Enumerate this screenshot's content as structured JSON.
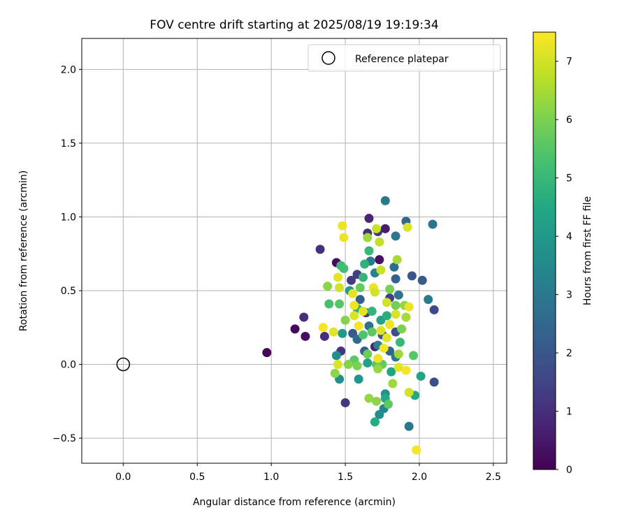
{
  "chart_data": {
    "type": "scatter",
    "title": "FOV centre drift starting at 2025/08/19 19:19:34",
    "xlabel": "Angular distance from reference (arcmin)",
    "ylabel": "Rotation from reference (arcmin)",
    "xlim": [
      -0.28,
      2.59
    ],
    "ylim": [
      -0.67,
      2.21
    ],
    "x_ticks": [
      0.0,
      0.5,
      1.0,
      1.5,
      2.0,
      2.5
    ],
    "x_tick_labels": [
      "0.0",
      "0.5",
      "1.0",
      "1.5",
      "2.0",
      "2.5"
    ],
    "y_ticks": [
      -0.5,
      0.0,
      0.5,
      1.0,
      1.5,
      2.0
    ],
    "y_tick_labels": [
      "−0.5",
      "0.0",
      "0.5",
      "1.0",
      "1.5",
      "2.0"
    ],
    "grid": true,
    "legend": {
      "placement": "top-right",
      "label": "Reference platepar"
    },
    "reference_point": {
      "x": 0.0,
      "y": 0.0
    },
    "colorbar": {
      "label": "Hours from first FF file",
      "range": [
        0,
        7.5
      ],
      "ticks": [
        0,
        1,
        2,
        3,
        4,
        5,
        6,
        7
      ],
      "tick_labels": [
        "0",
        "1",
        "2",
        "3",
        "4",
        "5",
        "6",
        "7"
      ],
      "colormap": "viridis"
    },
    "points": [
      {
        "x": 0.97,
        "y": 0.08,
        "h": 0.1
      },
      {
        "x": 1.16,
        "y": 0.24,
        "h": 0.2
      },
      {
        "x": 1.23,
        "y": 0.19,
        "h": 0.3
      },
      {
        "x": 1.22,
        "y": 0.32,
        "h": 1.0
      },
      {
        "x": 1.33,
        "y": 0.78,
        "h": 1.0
      },
      {
        "x": 1.36,
        "y": 0.19,
        "h": 1.0
      },
      {
        "x": 1.44,
        "y": 0.69,
        "h": 0.2
      },
      {
        "x": 1.47,
        "y": 0.09,
        "h": 1.2
      },
      {
        "x": 1.5,
        "y": -0.26,
        "h": 1.2
      },
      {
        "x": 1.54,
        "y": 0.57,
        "h": 1.3
      },
      {
        "x": 1.58,
        "y": 0.61,
        "h": 1.4
      },
      {
        "x": 1.65,
        "y": 0.89,
        "h": 1.0
      },
      {
        "x": 1.66,
        "y": 0.99,
        "h": 0.8
      },
      {
        "x": 1.72,
        "y": 0.9,
        "h": 1.3
      },
      {
        "x": 1.77,
        "y": 0.92,
        "h": 0.6
      },
      {
        "x": 1.73,
        "y": 0.71,
        "h": 0.3
      },
      {
        "x": 1.64,
        "y": 0.35,
        "h": 1.3
      },
      {
        "x": 1.7,
        "y": 0.12,
        "h": 0.7
      },
      {
        "x": 1.8,
        "y": 0.45,
        "h": 1.4
      },
      {
        "x": 1.84,
        "y": 0.22,
        "h": 1.8
      },
      {
        "x": 1.77,
        "y": 1.11,
        "h": 3.0
      },
      {
        "x": 1.91,
        "y": 0.97,
        "h": 2.5
      },
      {
        "x": 2.09,
        "y": 0.95,
        "h": 2.9
      },
      {
        "x": 1.84,
        "y": 0.87,
        "h": 3.0
      },
      {
        "x": 1.95,
        "y": 0.6,
        "h": 2.0
      },
      {
        "x": 2.02,
        "y": 0.57,
        "h": 2.1
      },
      {
        "x": 2.06,
        "y": 0.44,
        "h": 3.1
      },
      {
        "x": 2.1,
        "y": 0.37,
        "h": 1.6
      },
      {
        "x": 2.1,
        "y": -0.12,
        "h": 1.8
      },
      {
        "x": 1.93,
        "y": -0.42,
        "h": 3.0
      },
      {
        "x": 1.84,
        "y": 0.58,
        "h": 2.3
      },
      {
        "x": 1.83,
        "y": 0.66,
        "h": 2.7
      },
      {
        "x": 1.6,
        "y": 0.44,
        "h": 2.2
      },
      {
        "x": 1.55,
        "y": 0.21,
        "h": 2.1
      },
      {
        "x": 1.58,
        "y": 0.17,
        "h": 2.6
      },
      {
        "x": 1.63,
        "y": 0.09,
        "h": 2.2
      },
      {
        "x": 1.66,
        "y": 0.26,
        "h": 2.8
      },
      {
        "x": 1.72,
        "y": 0.13,
        "h": 3.2
      },
      {
        "x": 1.75,
        "y": 0.2,
        "h": 1.9
      },
      {
        "x": 1.8,
        "y": 0.09,
        "h": 2.4
      },
      {
        "x": 1.84,
        "y": 0.05,
        "h": 3.0
      },
      {
        "x": 1.86,
        "y": 0.47,
        "h": 2.9
      },
      {
        "x": 1.67,
        "y": 0.7,
        "h": 3.1
      },
      {
        "x": 1.7,
        "y": 0.62,
        "h": 3.3
      },
      {
        "x": 1.76,
        "y": -0.3,
        "h": 3.4
      },
      {
        "x": 1.73,
        "y": -0.34,
        "h": 3.6
      },
      {
        "x": 1.77,
        "y": -0.2,
        "h": 3.8
      },
      {
        "x": 1.44,
        "y": 0.06,
        "h": 3.6
      },
      {
        "x": 1.46,
        "y": -0.1,
        "h": 3.7
      },
      {
        "x": 1.59,
        "y": -0.1,
        "h": 3.9
      },
      {
        "x": 1.48,
        "y": 0.21,
        "h": 4.0
      },
      {
        "x": 1.53,
        "y": 0.5,
        "h": 4.1
      },
      {
        "x": 1.65,
        "y": 0.01,
        "h": 4.2
      },
      {
        "x": 1.74,
        "y": 0.3,
        "h": 4.3
      },
      {
        "x": 1.81,
        "y": -0.05,
        "h": 4.4
      },
      {
        "x": 1.87,
        "y": 0.15,
        "h": 5.0
      },
      {
        "x": 1.97,
        "y": -0.21,
        "h": 4.5
      },
      {
        "x": 2.01,
        "y": -0.08,
        "h": 4.4
      },
      {
        "x": 1.7,
        "y": -0.39,
        "h": 4.6
      },
      {
        "x": 1.77,
        "y": -0.23,
        "h": 4.5
      },
      {
        "x": 1.68,
        "y": 0.36,
        "h": 4.9
      },
      {
        "x": 1.78,
        "y": 0.33,
        "h": 4.7
      },
      {
        "x": 1.63,
        "y": 0.68,
        "h": 4.8
      },
      {
        "x": 1.58,
        "y": 0.38,
        "h": 4.8
      },
      {
        "x": 1.62,
        "y": 0.59,
        "h": 4.9
      },
      {
        "x": 1.66,
        "y": 0.77,
        "h": 5.0
      },
      {
        "x": 1.47,
        "y": 0.67,
        "h": 5.1
      },
      {
        "x": 1.49,
        "y": 0.65,
        "h": 5.2
      },
      {
        "x": 1.39,
        "y": 0.41,
        "h": 5.3
      },
      {
        "x": 1.46,
        "y": 0.41,
        "h": 5.5
      },
      {
        "x": 1.56,
        "y": 0.03,
        "h": 5.6
      },
      {
        "x": 1.6,
        "y": 0.52,
        "h": 5.7
      },
      {
        "x": 1.62,
        "y": 0.2,
        "h": 5.4
      },
      {
        "x": 1.65,
        "y": 0.07,
        "h": 5.8
      },
      {
        "x": 1.68,
        "y": 0.22,
        "h": 5.6
      },
      {
        "x": 1.71,
        "y": 0.0,
        "h": 5.5
      },
      {
        "x": 1.75,
        "y": 0.0,
        "h": 5.7
      },
      {
        "x": 1.79,
        "y": -0.27,
        "h": 5.6
      },
      {
        "x": 1.84,
        "y": 0.4,
        "h": 5.9
      },
      {
        "x": 1.88,
        "y": 0.24,
        "h": 6.0
      },
      {
        "x": 1.96,
        "y": 0.06,
        "h": 5.5
      },
      {
        "x": 1.43,
        "y": -0.06,
        "h": 6.2
      },
      {
        "x": 1.52,
        "y": 0.0,
        "h": 6.1
      },
      {
        "x": 1.58,
        "y": -0.01,
        "h": 6.0
      },
      {
        "x": 1.38,
        "y": 0.53,
        "h": 6.2
      },
      {
        "x": 1.5,
        "y": 0.3,
        "h": 6.1
      },
      {
        "x": 1.66,
        "y": -0.23,
        "h": 6.3
      },
      {
        "x": 1.71,
        "y": -0.25,
        "h": 6.2
      },
      {
        "x": 1.72,
        "y": -0.03,
        "h": 6.3
      },
      {
        "x": 1.8,
        "y": 0.51,
        "h": 6.0
      },
      {
        "x": 1.82,
        "y": -0.13,
        "h": 6.4
      },
      {
        "x": 1.85,
        "y": 0.71,
        "h": 6.5
      },
      {
        "x": 1.86,
        "y": 0.07,
        "h": 6.4
      },
      {
        "x": 1.9,
        "y": 0.4,
        "h": 6.3
      },
      {
        "x": 1.91,
        "y": 0.32,
        "h": 6.5
      },
      {
        "x": 1.65,
        "y": 0.86,
        "h": 6.4
      },
      {
        "x": 1.73,
        "y": 0.83,
        "h": 6.8
      },
      {
        "x": 1.71,
        "y": 0.92,
        "h": 6.9
      },
      {
        "x": 1.74,
        "y": 0.64,
        "h": 6.9
      },
      {
        "x": 1.45,
        "y": 0.59,
        "h": 7.2
      },
      {
        "x": 1.48,
        "y": 0.94,
        "h": 7.3
      },
      {
        "x": 1.49,
        "y": 0.86,
        "h": 7.3
      },
      {
        "x": 1.35,
        "y": 0.25,
        "h": 7.4
      },
      {
        "x": 1.42,
        "y": 0.22,
        "h": 7.2
      },
      {
        "x": 1.45,
        "y": 0.0,
        "h": 7.1
      },
      {
        "x": 1.46,
        "y": 0.52,
        "h": 7.0
      },
      {
        "x": 1.55,
        "y": 0.48,
        "h": 7.2
      },
      {
        "x": 1.56,
        "y": 0.4,
        "h": 7.3
      },
      {
        "x": 1.56,
        "y": 0.33,
        "h": 7.1
      },
      {
        "x": 1.59,
        "y": 0.26,
        "h": 7.4
      },
      {
        "x": 1.62,
        "y": 0.36,
        "h": 7.2
      },
      {
        "x": 1.69,
        "y": 0.52,
        "h": 7.3
      },
      {
        "x": 1.7,
        "y": 0.49,
        "h": 7.0
      },
      {
        "x": 1.72,
        "y": 0.04,
        "h": 7.3
      },
      {
        "x": 1.74,
        "y": 0.23,
        "h": 7.1
      },
      {
        "x": 1.76,
        "y": 0.11,
        "h": 7.4
      },
      {
        "x": 1.78,
        "y": 0.18,
        "h": 7.2
      },
      {
        "x": 1.78,
        "y": 0.42,
        "h": 7.0
      },
      {
        "x": 1.8,
        "y": 0.27,
        "h": 7.3
      },
      {
        "x": 1.84,
        "y": 0.34,
        "h": 7.1
      },
      {
        "x": 1.86,
        "y": -0.02,
        "h": 7.2
      },
      {
        "x": 1.91,
        "y": -0.04,
        "h": 7.4
      },
      {
        "x": 1.92,
        "y": 0.93,
        "h": 7.1
      },
      {
        "x": 1.93,
        "y": -0.19,
        "h": 7.0
      },
      {
        "x": 1.93,
        "y": 0.39,
        "h": 7.3
      },
      {
        "x": 1.98,
        "y": -0.58,
        "h": 7.4
      }
    ]
  }
}
